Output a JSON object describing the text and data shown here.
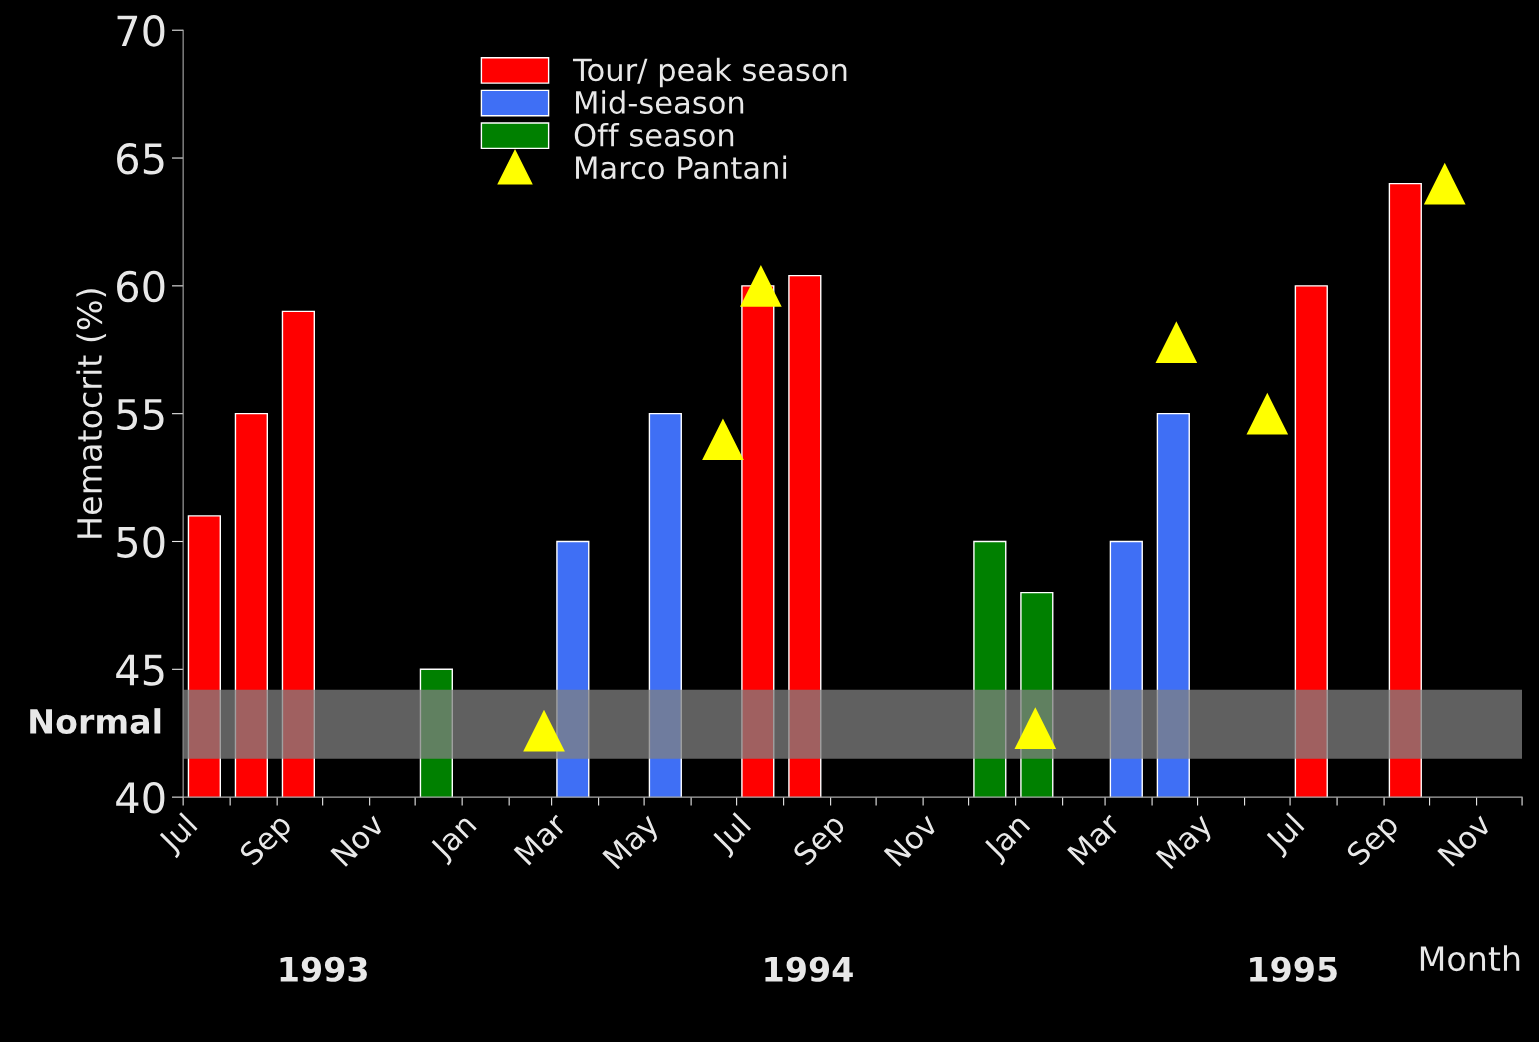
{
  "chart_data": {
    "type": "bar",
    "ylabel": "Hematocrit (%)",
    "xlabel": "Month",
    "annotations": [
      "1993",
      "1994",
      "1995"
    ],
    "series": [
      {
        "name": "Tour/ peak season",
        "color": "#ff0000",
        "x": [
          "1993-07-15",
          "1993-08-15",
          "1993-09-15",
          "1994-07-15",
          "1994-08-15",
          "1995-07-15",
          "1995-09-15"
        ],
        "values": [
          51,
          55,
          59,
          60,
          60.4,
          60,
          64
        ]
      },
      {
        "name": "Mid-season",
        "color": "#3f6ff5",
        "x": [
          "1994-03-15",
          "1994-05-15",
          "1995-03-15",
          "1995-04-15"
        ],
        "values": [
          50,
          55,
          50,
          55
        ]
      },
      {
        "name": "Off season",
        "color": "#008000",
        "x": [
          "1993-12-15",
          "1994-12-15",
          "1995-01-15"
        ],
        "values": [
          45,
          50,
          48
        ]
      },
      {
        "name": "Marco Pantani",
        "type": "scatter",
        "marker": "triangle",
        "color": "#ffff00",
        "x": [
          "1994-02-24",
          "1994-06-22",
          "1994-07-17",
          "1995-01-14",
          "1995-04-17",
          "1995-06-16",
          "1995-10-11"
        ],
        "values": [
          42.6,
          54,
          60,
          42.7,
          57.8,
          55,
          64
        ]
      }
    ],
    "bands": [
      {
        "axis": "y",
        "from": 41.5,
        "to": 44.2,
        "label": "Normal",
        "color": "#808080"
      }
    ],
    "xlim": [
      "1993-07-01",
      "1995-12-01"
    ],
    "xticks": [
      {
        "value": "1993-07-01",
        "label": "Jul"
      },
      {
        "value": "1993-08-01",
        "label": null
      },
      {
        "value": "1993-09-01",
        "label": "Sep"
      },
      {
        "value": "1993-10-01",
        "label": null
      },
      {
        "value": "1993-11-01",
        "label": "Nov"
      },
      {
        "value": "1993-12-01",
        "label": null
      },
      {
        "value": "1994-01-01",
        "label": "Jan"
      },
      {
        "value": "1994-02-01",
        "label": null
      },
      {
        "value": "1994-03-01",
        "label": "Mar"
      },
      {
        "value": "1994-04-01",
        "label": null
      },
      {
        "value": "1994-05-01",
        "label": "May"
      },
      {
        "value": "1994-06-01",
        "label": null
      },
      {
        "value": "1994-07-01",
        "label": "Jul"
      },
      {
        "value": "1994-08-01",
        "label": null
      },
      {
        "value": "1994-09-01",
        "label": "Sep"
      },
      {
        "value": "1994-10-01",
        "label": null
      },
      {
        "value": "1994-11-01",
        "label": "Nov"
      },
      {
        "value": "1994-12-01",
        "label": null
      },
      {
        "value": "1995-01-01",
        "label": "Jan"
      },
      {
        "value": "1995-02-01",
        "label": null
      },
      {
        "value": "1995-03-01",
        "label": "Mar"
      },
      {
        "value": "1995-04-01",
        "label": null
      },
      {
        "value": "1995-05-01",
        "label": "May"
      },
      {
        "value": "1995-06-01",
        "label": null
      },
      {
        "value": "1995-07-01",
        "label": "Jul"
      },
      {
        "value": "1995-08-01",
        "label": null
      },
      {
        "value": "1995-09-01",
        "label": "Sep"
      },
      {
        "value": "1995-10-01",
        "label": null
      },
      {
        "value": "1995-11-01",
        "label": "Nov"
      },
      {
        "value": "1995-12-01",
        "label": null
      }
    ],
    "ylim": [
      40,
      70
    ],
    "yticks": [
      40,
      45,
      50,
      55,
      60,
      65,
      70
    ],
    "grid": false,
    "legend": "top"
  }
}
